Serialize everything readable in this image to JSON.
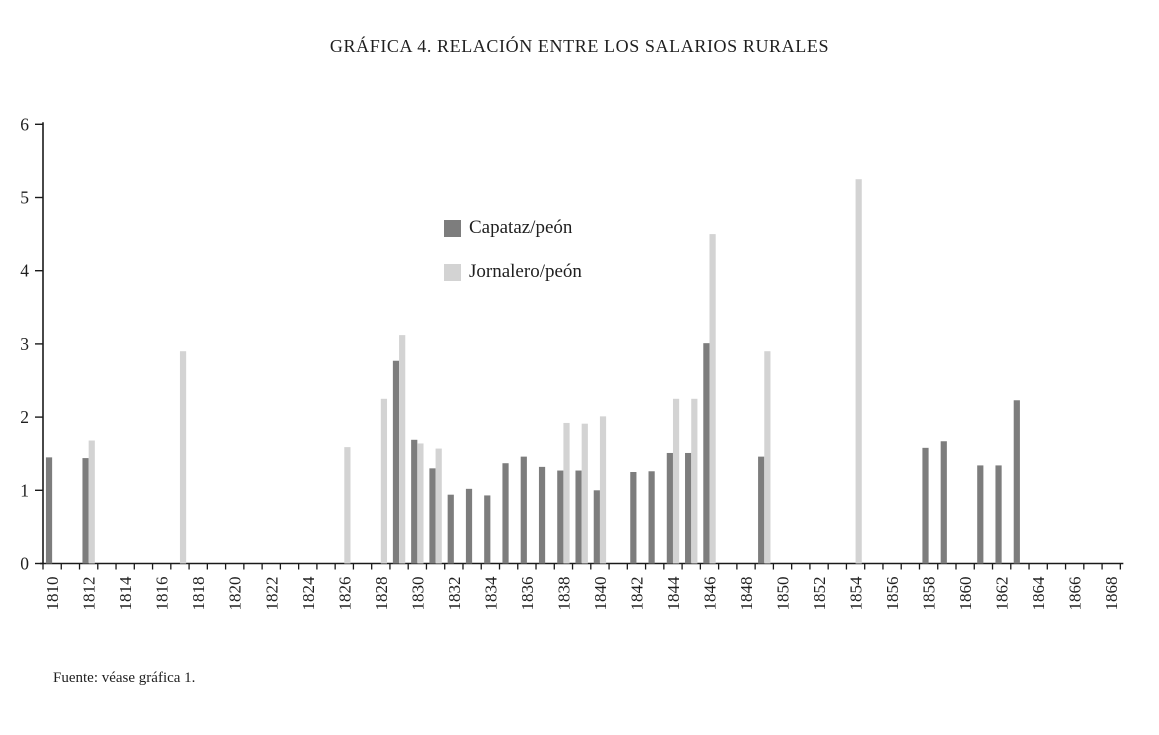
{
  "page": {
    "source_note": "Fuente: véase gráfica 1."
  },
  "chart_data": {
    "type": "bar",
    "title": "GRÁFICA 4. RELACIÓN ENTRE LOS SALARIOS RURALES",
    "xlabel": "",
    "ylabel": "",
    "ylim": [
      0,
      6
    ],
    "yticks": [
      0,
      1,
      2,
      3,
      4,
      5,
      6
    ],
    "x_axis": {
      "first_year": 1810,
      "last_year": 1868,
      "label_every": 2,
      "tick_every": 1,
      "label_rotation_deg": -90
    },
    "grid": false,
    "legend_position": "upper-middle-left",
    "colors": {
      "axis": "#1a1a1a",
      "capataz": "#7d7d7d",
      "jornalero": "#d3d3d3"
    },
    "series": [
      {
        "name": "Capataz/peón",
        "key": "capataz",
        "color": "#7d7d7d",
        "points": {
          "1810": 1.45,
          "1812": 1.44,
          "1829": 2.77,
          "1830": 1.69,
          "1831": 1.3,
          "1832": 0.94,
          "1833": 1.02,
          "1834": 0.93,
          "1835": 1.37,
          "1836": 1.46,
          "1837": 1.32,
          "1838": 1.27,
          "1839": 1.27,
          "1840": 1.0,
          "1842": 1.25,
          "1843": 1.26,
          "1844": 1.51,
          "1845": 1.51,
          "1846": 3.01,
          "1849": 1.46,
          "1858": 1.58,
          "1859": 1.67,
          "1861": 1.34,
          "1862": 1.34,
          "1863": 2.23
        }
      },
      {
        "name": "Jornalero/peón",
        "key": "jornalero",
        "color": "#d3d3d3",
        "points": {
          "1812": 1.68,
          "1817": 2.9,
          "1826": 1.59,
          "1828": 2.25,
          "1829": 3.12,
          "1830": 1.64,
          "1831": 1.57,
          "1838": 1.92,
          "1839": 1.91,
          "1840": 2.01,
          "1844": 2.25,
          "1845": 2.25,
          "1846": 4.5,
          "1849": 2.9,
          "1854": 5.25
        }
      }
    ]
  }
}
